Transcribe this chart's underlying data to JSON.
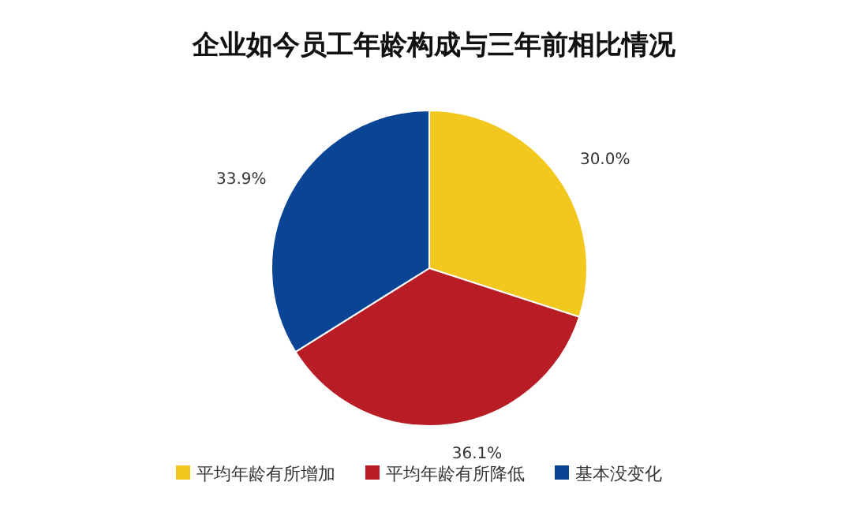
{
  "chart_data": {
    "type": "pie",
    "title": "企业如今员工年龄构成与三年前相比情况",
    "categories": [
      "平均年龄有所增加",
      "平均年龄有所降低",
      "基本没变化"
    ],
    "values": [
      30.0,
      36.1,
      33.9
    ],
    "value_labels": [
      "30.0%",
      "36.1%",
      "33.9%"
    ],
    "colors": [
      "#f2c81e",
      "#b81c25",
      "#0a4494"
    ],
    "legend": "bottom"
  }
}
